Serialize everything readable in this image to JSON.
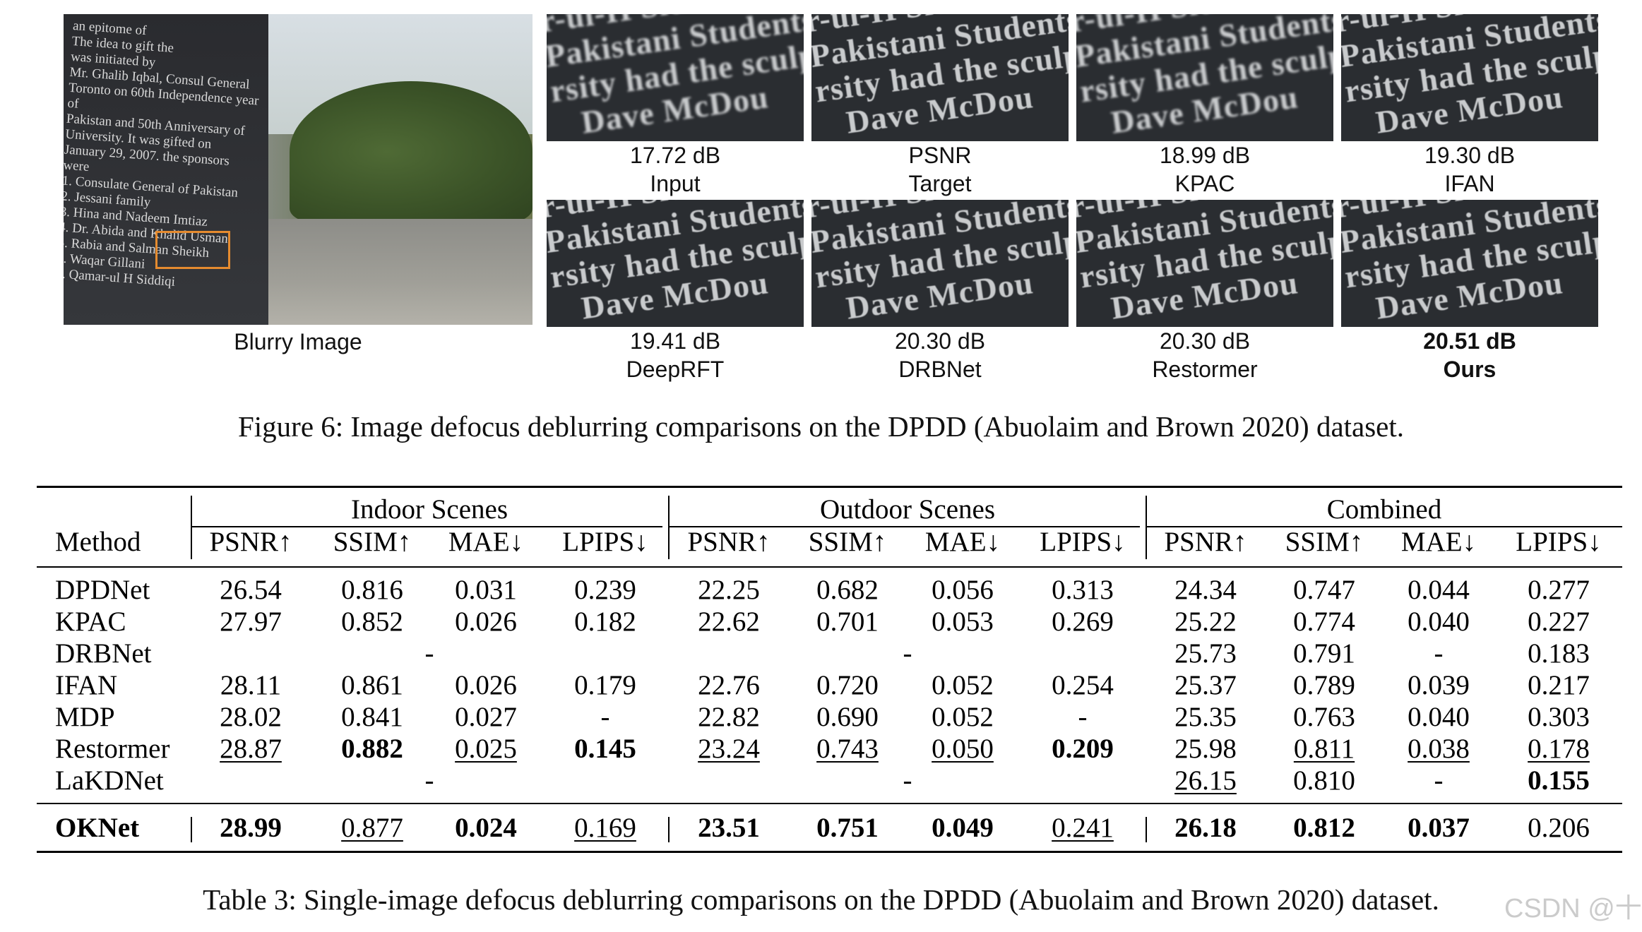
{
  "figure": {
    "blurry_label": "Blurry Image",
    "slab_text": "an epitome of\nThe idea to gift the\nwas initiated by\nMr. Ghalib Iqbal, Consul General\nToronto on 60th Independence year of\nPakistan and 50th Anniversary of\nUniversity. It was gifted on\nJanuary 29, 2007. the sponsors were\n1. Consulate General of Pakistan\n2. Jessani family\n3. Hina and Nadeem Imtiaz\n4. Dr. Abida and Khalid Usman\n5. Rabia and Salman Sheikh\n6. Waqar Gillani\n7. Qamar-ul H Siddiqi",
    "crop_text": "r-ul-H Siddi\nPakistani Students' Assoc\nrsity had the sculpture\n   Dave McDou",
    "crops": [
      {
        "value": "17.72 dB",
        "method": "Input",
        "bold": false
      },
      {
        "value": "PSNR",
        "method": "Target",
        "bold": false
      },
      {
        "value": "18.99 dB",
        "method": "KPAC",
        "bold": false
      },
      {
        "value": "19.30 dB",
        "method": "IFAN",
        "bold": false
      },
      {
        "value": "19.41 dB",
        "method": "DeepRFT",
        "bold": false
      },
      {
        "value": "20.30 dB",
        "method": "DRBNet",
        "bold": false
      },
      {
        "value": "20.30 dB",
        "method": "Restormer",
        "bold": false
      },
      {
        "value": "20.51 dB",
        "method": "Ours",
        "bold": true
      }
    ],
    "caption": "Figure 6: Image defocus deblurring comparisons on the DPDD (Abuolaim and Brown 2020) dataset."
  },
  "table": {
    "method_header": "Method",
    "groups": [
      "Indoor Scenes",
      "Outdoor Scenes",
      "Combined"
    ],
    "metrics": [
      "PSNR↑",
      "SSIM↑",
      "MAE↓",
      "LPIPS↓"
    ],
    "rows": [
      {
        "method": "DPDNet",
        "indoor": [
          "26.54",
          "0.816",
          "0.031",
          "0.239"
        ],
        "outdoor": [
          "22.25",
          "0.682",
          "0.056",
          "0.313"
        ],
        "combined": [
          "24.34",
          "0.747",
          "0.044",
          "0.277"
        ]
      },
      {
        "method": "KPAC",
        "indoor": [
          "27.97",
          "0.852",
          "0.026",
          "0.182"
        ],
        "outdoor": [
          "22.62",
          "0.701",
          "0.053",
          "0.269"
        ],
        "combined": [
          "25.22",
          "0.774",
          "0.040",
          "0.227"
        ]
      },
      {
        "method": "DRBNet",
        "indoor_dash": "-",
        "outdoor_dash": "-",
        "combined": [
          "25.73",
          "0.791",
          "-",
          "0.183"
        ]
      },
      {
        "method": "IFAN",
        "indoor": [
          "28.11",
          "0.861",
          "0.026",
          "0.179"
        ],
        "outdoor": [
          "22.76",
          "0.720",
          "0.052",
          "0.254"
        ],
        "combined": [
          "25.37",
          "0.789",
          "0.039",
          "0.217"
        ]
      },
      {
        "method": "MDP",
        "indoor": [
          "28.02",
          "0.841",
          "0.027",
          "-"
        ],
        "outdoor": [
          "22.82",
          "0.690",
          "0.052",
          "-"
        ],
        "combined": [
          "25.35",
          "0.763",
          "0.040",
          "0.303"
        ]
      },
      {
        "method": "Restormer",
        "indoor": [
          "28.87",
          "0.882",
          "0.025",
          "0.145"
        ],
        "outdoor": [
          "23.24",
          "0.743",
          "0.050",
          "0.209"
        ],
        "combined": [
          "25.98",
          "0.811",
          "0.038",
          "0.178"
        ]
      },
      {
        "method": "LaKDNet",
        "indoor_dash": "-",
        "outdoor_dash": "-",
        "combined": [
          "26.15",
          "0.810",
          "-",
          "0.155"
        ]
      },
      {
        "method": "OKNet",
        "indoor": [
          "28.99",
          "0.877",
          "0.024",
          "0.169"
        ],
        "outdoor": [
          "23.51",
          "0.751",
          "0.049",
          "0.241"
        ],
        "combined": [
          "26.18",
          "0.812",
          "0.037",
          "0.206"
        ]
      }
    ],
    "caption": "Table 3: Single-image defocus deblurring comparisons on the DPDD (Abuolaim and Brown 2020) dataset.",
    "watermark": "CSDN @十小大"
  }
}
